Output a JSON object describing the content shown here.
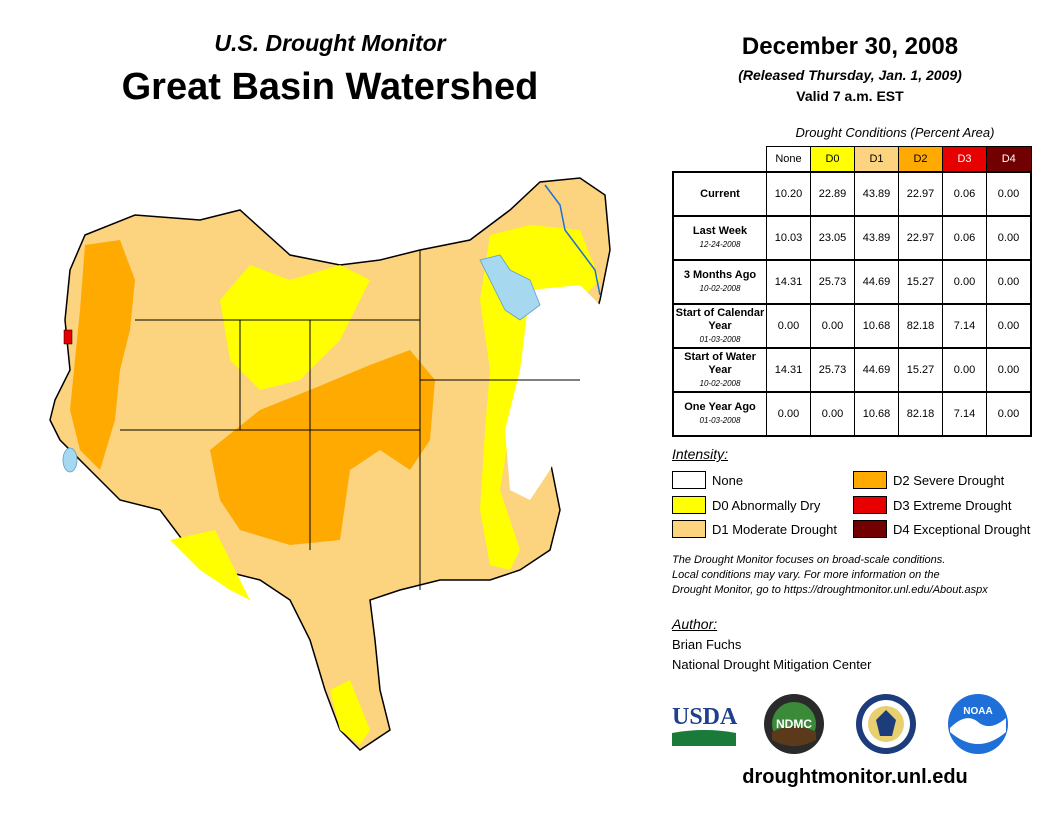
{
  "header": {
    "subtitle": "U.S. Drought Monitor",
    "title": "Great Basin Watershed",
    "date": "December 30, 2008",
    "released": "(Released Thursday, Jan. 1, 2009)",
    "valid": "Valid 7 a.m. EST"
  },
  "table": {
    "caption": "Drought Conditions (Percent Area)",
    "columns": [
      {
        "label": "None",
        "color": "#ffffff",
        "text_color": "#000000"
      },
      {
        "label": "D0",
        "color": "#ffff00",
        "text_color": "#000000"
      },
      {
        "label": "D1",
        "color": "#fcd37f",
        "text_color": "#000000"
      },
      {
        "label": "D2",
        "color": "#ffaa00",
        "text_color": "#000000"
      },
      {
        "label": "D3",
        "color": "#e60000",
        "text_color": "#ffffff"
      },
      {
        "label": "D4",
        "color": "#730000",
        "text_color": "#ffffff"
      }
    ],
    "rows": [
      {
        "label": "Current",
        "date": "",
        "values": [
          "10.20",
          "22.89",
          "43.89",
          "22.97",
          "0.06",
          "0.00"
        ]
      },
      {
        "label": "Last Week",
        "date": "12-24-2008",
        "values": [
          "10.03",
          "23.05",
          "43.89",
          "22.97",
          "0.06",
          "0.00"
        ]
      },
      {
        "label": "3 Months Ago",
        "date": "10-02-2008",
        "values": [
          "14.31",
          "25.73",
          "44.69",
          "15.27",
          "0.00",
          "0.00"
        ]
      },
      {
        "label": "Start of Calendar Year",
        "date": "01-03-2008",
        "values": [
          "0.00",
          "0.00",
          "10.68",
          "82.18",
          "7.14",
          "0.00"
        ]
      },
      {
        "label": "Start of Water Year",
        "date": "10-02-2008",
        "values": [
          "14.31",
          "25.73",
          "44.69",
          "15.27",
          "0.00",
          "0.00"
        ]
      },
      {
        "label": "One Year Ago",
        "date": "01-03-2008",
        "values": [
          "0.00",
          "0.00",
          "10.68",
          "82.18",
          "7.14",
          "0.00"
        ]
      }
    ]
  },
  "legend": {
    "title": "Intensity:",
    "items": [
      {
        "label": "None",
        "color": "#ffffff"
      },
      {
        "label": "D0 Abnormally Dry",
        "color": "#ffff00"
      },
      {
        "label": "D1 Moderate Drought",
        "color": "#fcd37f"
      },
      {
        "label": "D2 Severe Drought",
        "color": "#ffaa00"
      },
      {
        "label": "D3 Extreme Drought",
        "color": "#e60000"
      },
      {
        "label": "D4 Exceptional Drought",
        "color": "#730000"
      }
    ]
  },
  "note": {
    "line1": "The Drought Monitor focuses on broad-scale conditions.",
    "line2": "Local conditions may vary. For more information on the",
    "line3": "Drought Monitor, go to https://droughtmonitor.unl.edu/About.aspx"
  },
  "author": {
    "title": "Author:",
    "name": "Brian Fuchs",
    "org": "National Drought Mitigation Center"
  },
  "logos": {
    "usda": "USDA",
    "ndmc": "NDMC",
    "noaa": "NOAA"
  },
  "website": "droughtmonitor.unl.edu",
  "colors": {
    "lake": "#a6d8f0",
    "river": "#1f6fd8",
    "border": "#000000"
  }
}
